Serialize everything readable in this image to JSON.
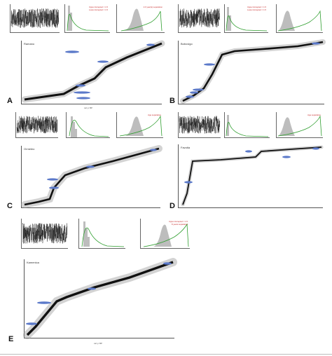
{
  "figure": {
    "panels": [
      {
        "letter": "A",
        "site": "Ramano",
        "legend": [
          "Upper Accepted = 1.5",
          "Lower Accepted = 1.5",
          "2.0 year(s) separation"
        ]
      },
      {
        "letter": "B",
        "site": "Bobovigo",
        "legend": [
          "Upper Accepted = 1.5",
          "Lower Accepted = 1.5"
        ]
      },
      {
        "letter": "C",
        "site": "Ormeleo",
        "legend": [
          "Age separation"
        ]
      },
      {
        "letter": "D",
        "site": "Favotia",
        "legend": [
          "Age separation"
        ]
      },
      {
        "letter": "E",
        "site": "Kamenica",
        "legend": [
          "Upper Accepted = 1.5",
          "8 years separation"
        ]
      }
    ],
    "axis_labels": {
      "iteration": "Iteration",
      "acc_rate": "Acc. rate (yr/cm)",
      "memory": "Memory",
      "depth": "Depth",
      "age": "cal yr BP"
    }
  },
  "colors": {
    "trace": "#111111",
    "prior_green": "#2e9e2e",
    "posterior_grey": "#bdbdbd",
    "date_blue": "#5b79c9",
    "model_grey": "#9e9e9e",
    "legend_red": "#c62828"
  }
}
